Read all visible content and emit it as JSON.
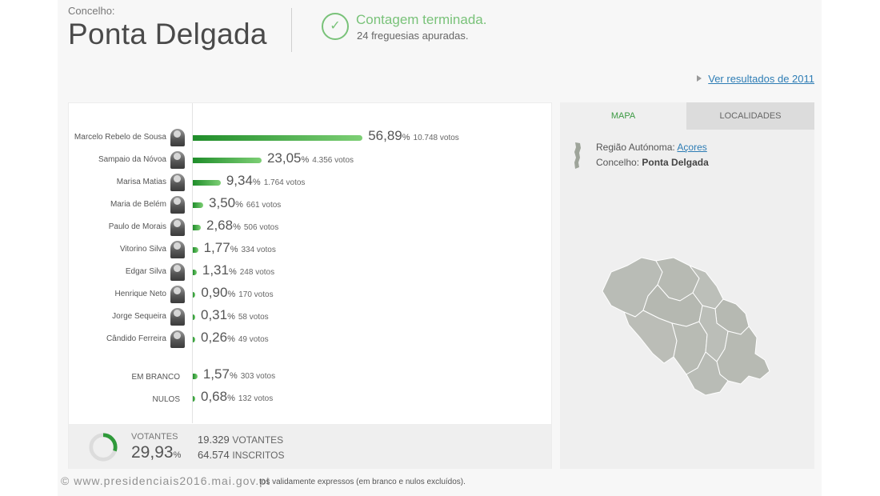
{
  "header": {
    "concelho_label": "Concelho:",
    "place_name": "Ponta Delgada",
    "status_title": "Contagem terminada.",
    "status_subtitle": "24 freguesias apuradas.",
    "previous_results_link": "Ver resultados de 2011",
    "check_icon": "check-circle-icon"
  },
  "results": {
    "percent_sign": "%",
    "candidates": [
      {
        "name": "Marcelo Rebelo de Sousa",
        "percent": "56,89",
        "percent_value": 56.89,
        "votes": "10.748 votos"
      },
      {
        "name": "Sampaio da Nóvoa",
        "percent": "23,05",
        "percent_value": 23.05,
        "votes": "4.356 votos"
      },
      {
        "name": "Marisa Matias",
        "percent": "9,34",
        "percent_value": 9.34,
        "votes": "1.764 votos"
      },
      {
        "name": "Maria de Belém",
        "percent": "3,50",
        "percent_value": 3.5,
        "votes": "661 votos"
      },
      {
        "name": "Paulo de Morais",
        "percent": "2,68",
        "percent_value": 2.68,
        "votes": "506 votos"
      },
      {
        "name": "Vitorino Silva",
        "percent": "1,77",
        "percent_value": 1.77,
        "votes": "334 votos"
      },
      {
        "name": "Edgar Silva",
        "percent": "1,31",
        "percent_value": 1.31,
        "votes": "248 votos"
      },
      {
        "name": "Henrique Neto",
        "percent": "0,90",
        "percent_value": 0.9,
        "votes": "170 votos"
      },
      {
        "name": "Jorge Sequeira",
        "percent": "0,31",
        "percent_value": 0.31,
        "votes": "58 votos"
      },
      {
        "name": "Cândido Ferreira",
        "percent": "0,26",
        "percent_value": 0.26,
        "votes": "49 votos"
      }
    ],
    "other": [
      {
        "name": "EM BRANCO",
        "percent": "1,57",
        "percent_value": 1.57,
        "votes": "303 votos"
      },
      {
        "name": "NULOS",
        "percent": "0,68",
        "percent_value": 0.68,
        "votes": "132 votos"
      }
    ]
  },
  "summary": {
    "turnout_label": "VOTANTES",
    "turnout_value": "29,93",
    "turnout_percent": "%",
    "turnout_fraction": 0.2993,
    "voters_count": "19.329",
    "voters_unit": "VOTANTES",
    "registered_count": "64.574",
    "registered_unit": "INSCRITOS"
  },
  "footnote": "tos validamente expressos (em branco e nulos excluídos).",
  "watermark": "© www.presidenciais2016.mai.gov.pt",
  "map_panel": {
    "tab_map": "MAPA",
    "tab_localidades": "LOCALIDADES",
    "region_label": "Região Autónoma:",
    "region_value": "Açores",
    "concelho_label": "Concelho:",
    "concelho_value": "Ponta Delgada"
  },
  "colors": {
    "accent_green": "#79c279",
    "bar_green": "#1f8d2a",
    "link_blue": "#2e7db5",
    "map_fill": "#b9bcb6"
  }
}
